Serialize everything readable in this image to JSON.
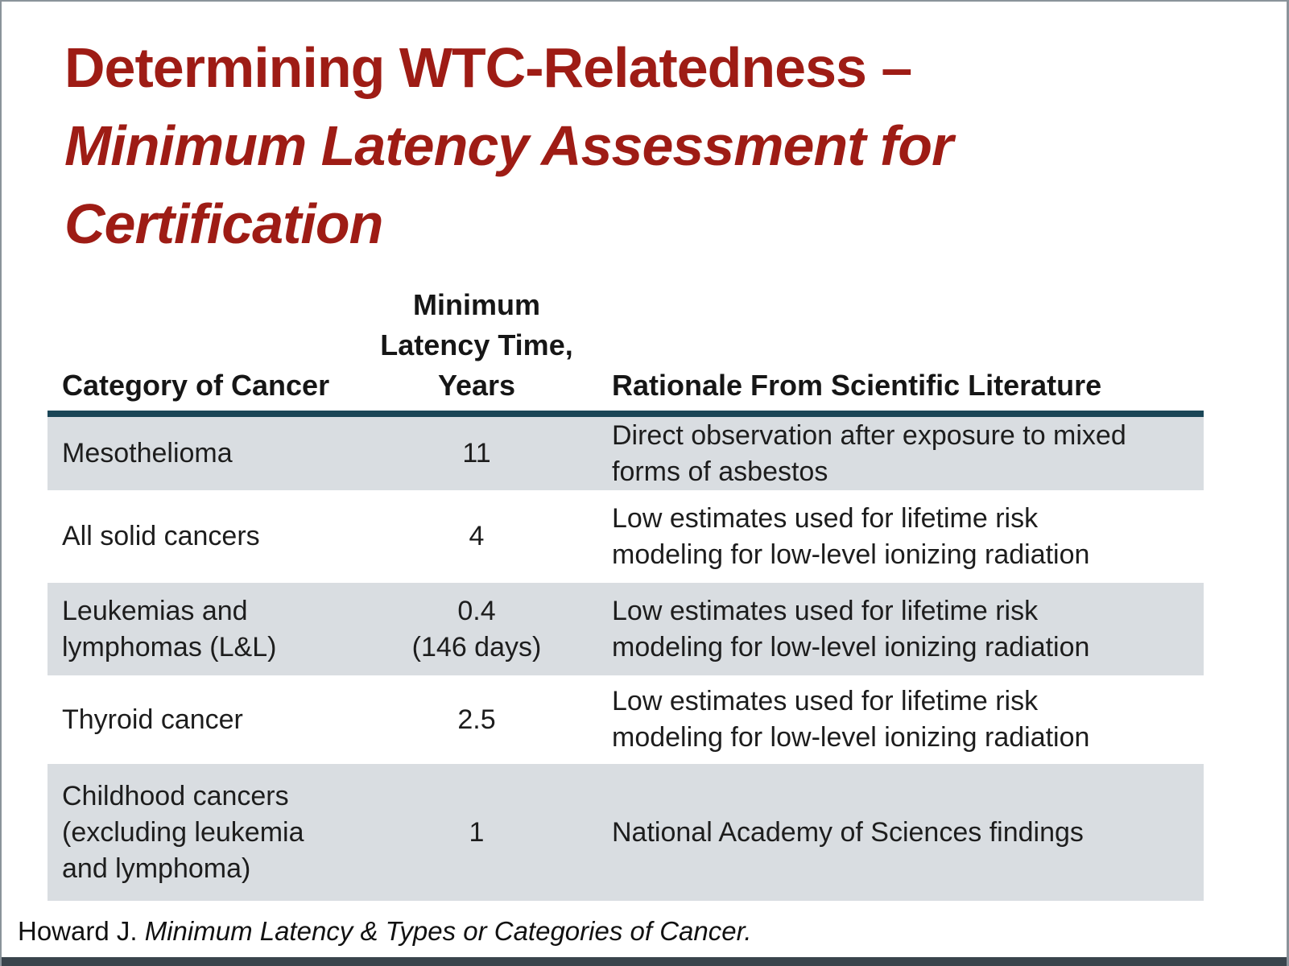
{
  "colors": {
    "title-red": "#9E1C15",
    "rule-navy": "#1B4657",
    "row-gray": "#D9DDE1",
    "text-dark": "#1D1D1D",
    "frame-border": "#8A939A",
    "bottom-bar": "#3A444C"
  },
  "title": {
    "line1": "Determining WTC-Relatedness –",
    "line2": "Minimum Latency Assessment for",
    "line3": "Certification"
  },
  "table": {
    "headers": {
      "category": "Category of Cancer",
      "latency_lines": [
        "Minimum",
        "Latency Time,",
        "Years"
      ],
      "rationale": "Rationale From Scientific Literature"
    },
    "rows": [
      {
        "category_lines": [
          "Mesothelioma"
        ],
        "latency_lines": [
          "11"
        ],
        "rationale_lines": [
          "Direct observation after exposure to mixed",
          "forms of asbestos"
        ]
      },
      {
        "category_lines": [
          "All solid cancers"
        ],
        "latency_lines": [
          "4"
        ],
        "rationale_lines": [
          "Low estimates used for lifetime risk",
          "modeling for low-level ionizing radiation"
        ]
      },
      {
        "category_lines": [
          "Leukemias and",
          "lymphomas (L&L)"
        ],
        "latency_lines": [
          "0.4",
          "(146 days)"
        ],
        "rationale_lines": [
          "Low estimates used for lifetime risk",
          "modeling for low-level ionizing radiation"
        ]
      },
      {
        "category_lines": [
          "Thyroid cancer"
        ],
        "latency_lines": [
          "2.5"
        ],
        "rationale_lines": [
          "Low estimates used for lifetime risk",
          "modeling for low-level ionizing radiation"
        ]
      },
      {
        "category_lines": [
          "Childhood cancers",
          "(excluding leukemia",
          "and lymphoma)"
        ],
        "latency_lines": [
          "1"
        ],
        "rationale_lines": [
          "National Academy of Sciences findings"
        ]
      }
    ]
  },
  "footer": {
    "author": "Howard J. ",
    "work": "Minimum Latency & Types or Categories of Cancer."
  }
}
